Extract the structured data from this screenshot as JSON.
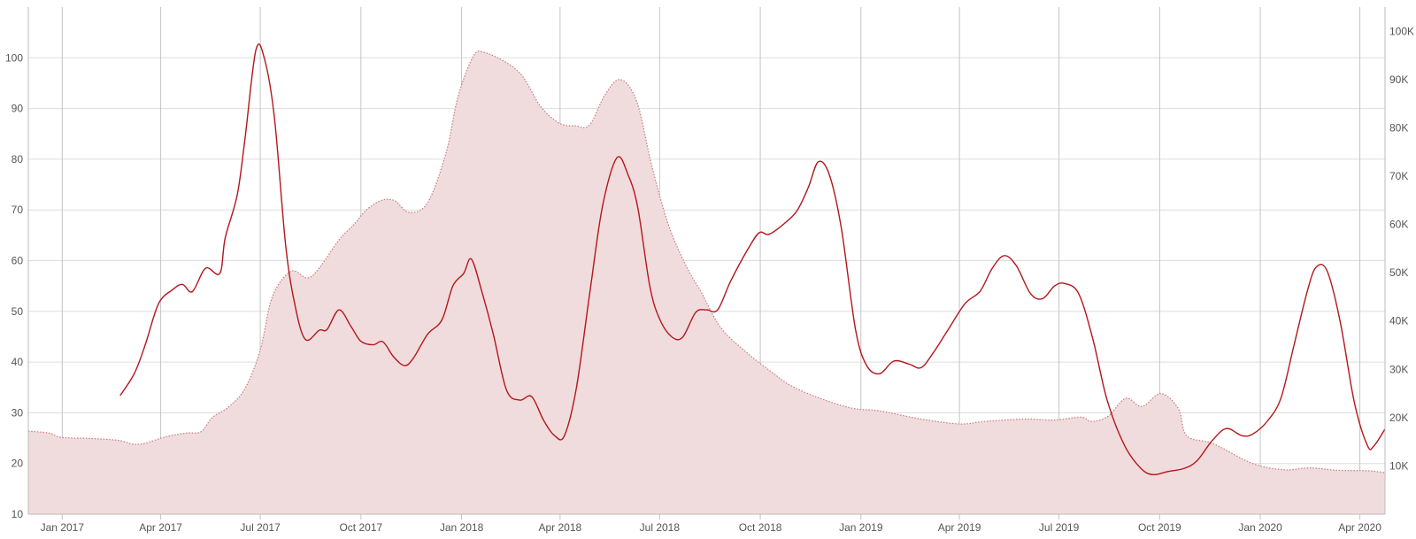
{
  "chart_data": {
    "type": "line",
    "title": "",
    "xlabel": "",
    "ylabel": "",
    "x_ticks": [
      "Jan 2017",
      "Apr 2017",
      "Jul 2017",
      "Oct 2017",
      "Jan 2018",
      "Apr 2018",
      "Jul 2018",
      "Oct 2018",
      "Jan 2019",
      "Apr 2019",
      "Jul 2019",
      "Oct 2019",
      "Jan 2020",
      "Apr 2020"
    ],
    "xlim": [
      "2016-12-01",
      "2020-04-24"
    ],
    "y_left": {
      "lim": [
        10,
        110
      ],
      "ticks": [
        "10",
        "20",
        "30",
        "40",
        "50",
        "60",
        "70",
        "80",
        "90",
        "100"
      ]
    },
    "y_right": {
      "lim": [
        0,
        105000
      ],
      "ticks": [
        "10K",
        "20K",
        "30K",
        "40K",
        "50K",
        "60K",
        "70K",
        "80K",
        "90K",
        "100K"
      ]
    },
    "grid": true,
    "legend": "none",
    "colors": {
      "line": "#b3161b",
      "area_fill": "#f1dcdd",
      "area_stroke": "#c47a7e"
    },
    "series": [
      {
        "axis": "left",
        "style": "solid-line",
        "points": [
          [
            "2017-02-23",
            33.4
          ],
          [
            "2017-03-08",
            37.8
          ],
          [
            "2017-03-18",
            43.5
          ],
          [
            "2017-03-30",
            51.5
          ],
          [
            "2017-04-12",
            54.3
          ],
          [
            "2017-04-21",
            55.3
          ],
          [
            "2017-04-30",
            53.9
          ],
          [
            "2017-05-12",
            58.5
          ],
          [
            "2017-05-25",
            57.5
          ],
          [
            "2017-05-30",
            64.5
          ],
          [
            "2017-06-10",
            73.0
          ],
          [
            "2017-06-17",
            84.0
          ],
          [
            "2017-06-27",
            101.5
          ],
          [
            "2017-07-05",
            99.7
          ],
          [
            "2017-07-14",
            88.0
          ],
          [
            "2017-07-24",
            63.5
          ],
          [
            "2017-08-01",
            52.0
          ],
          [
            "2017-08-11",
            44.5
          ],
          [
            "2017-08-24",
            46.3
          ],
          [
            "2017-08-31",
            46.4
          ],
          [
            "2017-09-11",
            50.3
          ],
          [
            "2017-09-22",
            47.0
          ],
          [
            "2017-10-01",
            44.1
          ],
          [
            "2017-10-12",
            43.4
          ],
          [
            "2017-10-21",
            44.0
          ],
          [
            "2017-10-31",
            41.0
          ],
          [
            "2017-11-10",
            39.3
          ],
          [
            "2017-11-18",
            40.8
          ],
          [
            "2017-12-01",
            45.5
          ],
          [
            "2017-12-14",
            48.3
          ],
          [
            "2017-12-24",
            55.0
          ],
          [
            "2018-01-03",
            57.5
          ],
          [
            "2018-01-10",
            60.3
          ],
          [
            "2018-01-20",
            53.5
          ],
          [
            "2018-01-30",
            45.5
          ],
          [
            "2018-02-11",
            34.5
          ],
          [
            "2018-02-23",
            32.5
          ],
          [
            "2018-03-06",
            33.2
          ],
          [
            "2018-03-17",
            28.5
          ],
          [
            "2018-03-27",
            25.5
          ],
          [
            "2018-04-05",
            25.5
          ],
          [
            "2018-04-16",
            35.0
          ],
          [
            "2018-04-29",
            55.0
          ],
          [
            "2018-05-10",
            71.0
          ],
          [
            "2018-05-23",
            80.3
          ],
          [
            "2018-06-02",
            77.0
          ],
          [
            "2018-06-11",
            70.5
          ],
          [
            "2018-06-22",
            55.0
          ],
          [
            "2018-07-01",
            48.5
          ],
          [
            "2018-07-12",
            45.0
          ],
          [
            "2018-07-22",
            44.9
          ],
          [
            "2018-08-03",
            49.8
          ],
          [
            "2018-08-13",
            50.3
          ],
          [
            "2018-08-23",
            50.3
          ],
          [
            "2018-09-04",
            56.0
          ],
          [
            "2018-09-19",
            62.0
          ],
          [
            "2018-09-30",
            65.5
          ],
          [
            "2018-10-09",
            65.2
          ],
          [
            "2018-10-24",
            67.5
          ],
          [
            "2018-11-04",
            70.0
          ],
          [
            "2018-11-14",
            74.5
          ],
          [
            "2018-11-23",
            79.5
          ],
          [
            "2018-12-03",
            77.0
          ],
          [
            "2018-12-14",
            66.5
          ],
          [
            "2018-12-27",
            46.5
          ],
          [
            "2019-01-06",
            39.4
          ],
          [
            "2019-01-18",
            37.7
          ],
          [
            "2019-01-31",
            40.2
          ],
          [
            "2019-02-14",
            39.6
          ],
          [
            "2019-02-25",
            38.9
          ],
          [
            "2019-03-08",
            41.8
          ],
          [
            "2019-03-22",
            46.5
          ],
          [
            "2019-04-06",
            51.5
          ],
          [
            "2019-04-20",
            54.0
          ],
          [
            "2019-05-01",
            58.5
          ],
          [
            "2019-05-12",
            61.0
          ],
          [
            "2019-05-23",
            59.0
          ],
          [
            "2019-06-05",
            53.5
          ],
          [
            "2019-06-16",
            52.5
          ],
          [
            "2019-06-27",
            55.0
          ],
          [
            "2019-07-06",
            55.5
          ],
          [
            "2019-07-19",
            53.5
          ],
          [
            "2019-08-01",
            44.5
          ],
          [
            "2019-08-14",
            32.5
          ],
          [
            "2019-08-30",
            23.5
          ],
          [
            "2019-09-14",
            19.0
          ],
          [
            "2019-09-25",
            17.8
          ],
          [
            "2019-10-08",
            18.4
          ],
          [
            "2019-10-23",
            19.0
          ],
          [
            "2019-11-04",
            20.5
          ],
          [
            "2019-11-18",
            24.5
          ],
          [
            "2019-12-01",
            26.9
          ],
          [
            "2019-12-15",
            25.5
          ],
          [
            "2019-12-25",
            25.8
          ],
          [
            "2020-01-08",
            28.5
          ],
          [
            "2020-01-20",
            33.0
          ],
          [
            "2020-02-01",
            43.5
          ],
          [
            "2020-02-13",
            54.0
          ],
          [
            "2020-02-21",
            58.7
          ],
          [
            "2020-03-02",
            58.0
          ],
          [
            "2020-03-14",
            48.0
          ],
          [
            "2020-03-27",
            32.0
          ],
          [
            "2020-04-08",
            23.5
          ],
          [
            "2020-04-14",
            23.5
          ],
          [
            "2020-04-24",
            26.8
          ]
        ]
      },
      {
        "axis": "right",
        "style": "area-dotted",
        "points": [
          [
            "2016-12-01",
            17200
          ],
          [
            "2016-12-20",
            16800
          ],
          [
            "2016-12-31",
            15900
          ],
          [
            "2017-01-25",
            15700
          ],
          [
            "2017-02-21",
            15300
          ],
          [
            "2017-03-07",
            14500
          ],
          [
            "2017-03-18",
            14700
          ],
          [
            "2017-04-05",
            16000
          ],
          [
            "2017-04-24",
            16800
          ],
          [
            "2017-05-08",
            17100
          ],
          [
            "2017-05-18",
            20000
          ],
          [
            "2017-06-02",
            22200
          ],
          [
            "2017-06-17",
            26000
          ],
          [
            "2017-07-01",
            34000
          ],
          [
            "2017-07-12",
            45000
          ],
          [
            "2017-07-29",
            50300
          ],
          [
            "2017-08-13",
            48900
          ],
          [
            "2017-08-24",
            51000
          ],
          [
            "2017-09-11",
            56800
          ],
          [
            "2017-09-25",
            60100
          ],
          [
            "2017-10-06",
            63000
          ],
          [
            "2017-10-20",
            65000
          ],
          [
            "2017-11-01",
            64900
          ],
          [
            "2017-11-14",
            62500
          ],
          [
            "2017-12-01",
            64500
          ],
          [
            "2017-12-18",
            75000
          ],
          [
            "2017-12-29",
            86700
          ],
          [
            "2018-01-12",
            94900
          ],
          [
            "2018-01-22",
            95600
          ],
          [
            "2018-02-11",
            93500
          ],
          [
            "2018-02-26",
            90600
          ],
          [
            "2018-03-14",
            84500
          ],
          [
            "2018-03-31",
            81000
          ],
          [
            "2018-04-15",
            80400
          ],
          [
            "2018-04-28",
            80600
          ],
          [
            "2018-05-12",
            86800
          ],
          [
            "2018-05-26",
            90000
          ],
          [
            "2018-06-10",
            85500
          ],
          [
            "2018-06-24",
            72000
          ],
          [
            "2018-07-09",
            60000
          ],
          [
            "2018-07-25",
            51500
          ],
          [
            "2018-08-08",
            46000
          ],
          [
            "2018-08-26",
            38600
          ],
          [
            "2018-09-19",
            33400
          ],
          [
            "2018-10-11",
            29500
          ],
          [
            "2018-10-30",
            26500
          ],
          [
            "2018-11-27",
            23800
          ],
          [
            "2018-12-25",
            21900
          ],
          [
            "2019-01-18",
            21400
          ],
          [
            "2019-02-25",
            19700
          ],
          [
            "2019-04-01",
            18700
          ],
          [
            "2019-04-24",
            19200
          ],
          [
            "2019-05-30",
            19700
          ],
          [
            "2019-06-27",
            19500
          ],
          [
            "2019-07-21",
            20100
          ],
          [
            "2019-07-31",
            19200
          ],
          [
            "2019-08-15",
            20300
          ],
          [
            "2019-08-31",
            24000
          ],
          [
            "2019-09-15",
            22300
          ],
          [
            "2019-10-02",
            25000
          ],
          [
            "2019-10-18",
            21900
          ],
          [
            "2019-10-26",
            16200
          ],
          [
            "2019-11-19",
            14600
          ],
          [
            "2019-12-25",
            10500
          ],
          [
            "2020-01-23",
            9200
          ],
          [
            "2020-02-15",
            9600
          ],
          [
            "2020-03-11",
            9100
          ],
          [
            "2020-04-08",
            9000
          ],
          [
            "2020-04-24",
            8600
          ]
        ]
      }
    ]
  }
}
